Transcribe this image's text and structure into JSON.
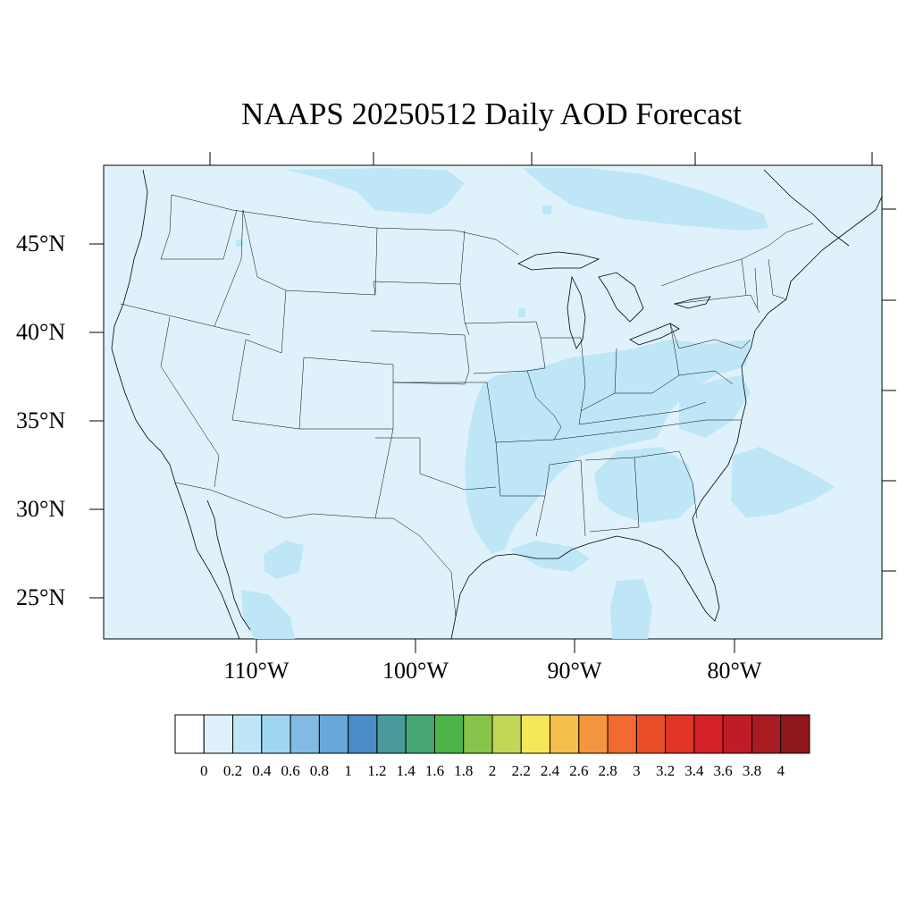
{
  "title": "NAAPS 20250512 Daily AOD Forecast",
  "lat_labels": [
    "45°N",
    "40°N",
    "35°N",
    "30°N",
    "25°N"
  ],
  "lon_labels": [
    "110°W",
    "100°W",
    "90°W",
    "80°W"
  ],
  "colorbar": {
    "labels": [
      "0",
      "0.2",
      "0.4",
      "0.6",
      "0.8",
      "1",
      "1.2",
      "1.4",
      "1.6",
      "1.8",
      "2",
      "2.2",
      "2.4",
      "2.6",
      "2.8",
      "3",
      "3.2",
      "3.4",
      "3.6",
      "3.8",
      "4"
    ],
    "colors": [
      "#ffffff",
      "#dff2fb",
      "#bee6f7",
      "#9fd6f2",
      "#82bce4",
      "#68a7d9",
      "#4a8cc8",
      "#4a9a9a",
      "#47a673",
      "#4bb548",
      "#86c44b",
      "#c3d756",
      "#f6e65a",
      "#f6bf4a",
      "#f5963e",
      "#f26a2f",
      "#ea4d2a",
      "#e03427",
      "#d42028",
      "#bf1d26",
      "#a81b22",
      "#8f181c"
    ]
  },
  "map": {
    "ocean_color": "#dff2fb",
    "plume_color": "#bee6f7",
    "aod_level": "0.2-0.4"
  }
}
